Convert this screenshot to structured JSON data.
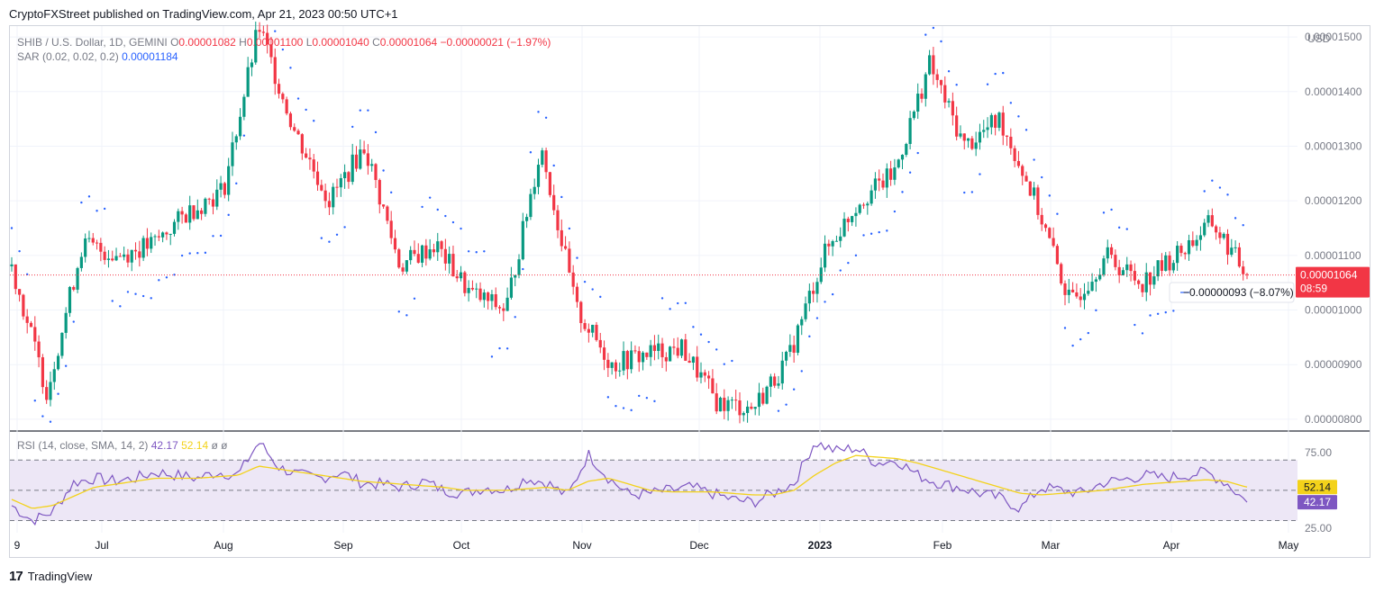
{
  "header": {
    "published": "CryptoFXStreet published on TradingView.com, Apr 21, 2023 00:50 UTC+1"
  },
  "legend_main": {
    "symbol": "SHIB / U.S. Dollar, 1D, GEMINI",
    "o_label": "O",
    "o_value": "0.00001082",
    "h_label": "H",
    "h_value": "0.00001100",
    "l_label": "L",
    "l_value": "0.00001040",
    "c_label": "C",
    "c_value": "0.00001064",
    "change": "−0.00000021 (−1.97%)"
  },
  "legend_sar": {
    "label": "SAR (0.02, 0.02, 0.2)",
    "value": "0.00001184"
  },
  "legend_rsi": {
    "label": "RSI (14, close, SMA, 14, 2)",
    "rsi_value": "42.17",
    "sma_value": "52.14",
    "extra1": "ø",
    "extra2": "ø"
  },
  "price_axis": {
    "currency": "USD",
    "last_price_label": "0.00001064",
    "countdown": "08:59",
    "measure_label": "−0.00000093 (−8.07%)"
  },
  "rsi_axis": {
    "rsi_label": "42.17",
    "sma_label": "52.14"
  },
  "footer": {
    "brand": "TradingView",
    "logo_text": "17"
  },
  "colors": {
    "up": "#089981",
    "down": "#f23645",
    "sar": "#2962ff",
    "rsi": "#7e57c2",
    "rsi_ma": "#f3d21a",
    "rsi_band": "#ede7f6",
    "grid": "#f0f3fa"
  },
  "chart_data": [
    {
      "type": "candlestick",
      "title": "SHIB / U.S. Dollar, 1D, GEMINI",
      "ylabel": "USD",
      "y_ticks": [
        "0.00000800",
        "0.00000900",
        "0.00001000",
        "0.00001100",
        "0.00001200",
        "0.00001300",
        "0.00001400",
        "0.00001500"
      ],
      "ylim": [
        7.8e-06,
        1.52e-05
      ],
      "x_ticks": [
        "9",
        "Jul",
        "Aug",
        "Sep",
        "Oct",
        "Nov",
        "Dec",
        "2023",
        "Feb",
        "Mar",
        "Apr",
        "May"
      ],
      "last_price": 1.064e-05,
      "approx_close_path": [
        {
          "date": "2023-06-09",
          "close": 1.08e-05
        },
        {
          "date": "2022-06-15",
          "close": 8.5e-06
        },
        {
          "date": "2022-06-22",
          "close": 1.12e-05
        },
        {
          "date": "2022-07-01",
          "close": 1.1e-05
        },
        {
          "date": "2022-07-12",
          "close": 1.12e-05
        },
        {
          "date": "2022-07-25",
          "close": 1.18e-05
        },
        {
          "date": "2022-08-06",
          "close": 1.22e-05
        },
        {
          "date": "2022-08-14",
          "close": 1.52e-05
        },
        {
          "date": "2022-08-20",
          "close": 1.33e-05
        },
        {
          "date": "2022-08-31",
          "close": 1.2e-05
        },
        {
          "date": "2022-09-14",
          "close": 1.3e-05
        },
        {
          "date": "2022-09-25",
          "close": 1.08e-05
        },
        {
          "date": "2022-10-05",
          "close": 1.12e-05
        },
        {
          "date": "2022-10-15",
          "close": 1.03e-05
        },
        {
          "date": "2022-10-25",
          "close": 1e-05
        },
        {
          "date": "2022-10-30",
          "close": 1.3e-05
        },
        {
          "date": "2022-11-09",
          "close": 1e-05
        },
        {
          "date": "2022-11-14",
          "close": 9e-06
        },
        {
          "date": "2022-11-24",
          "close": 9.2e-06
        },
        {
          "date": "2022-12-08",
          "close": 9.3e-06
        },
        {
          "date": "2022-12-16",
          "close": 8.3e-06
        },
        {
          "date": "2022-12-30",
          "close": 8.2e-06
        },
        {
          "date": "2023-01-08",
          "close": 9.1e-06
        },
        {
          "date": "2023-01-16",
          "close": 1.1e-05
        },
        {
          "date": "2023-01-23",
          "close": 1.2e-05
        },
        {
          "date": "2023-02-01",
          "close": 1.25e-05
        },
        {
          "date": "2023-02-05",
          "close": 1.45e-05
        },
        {
          "date": "2023-02-15",
          "close": 1.3e-05
        },
        {
          "date": "2023-02-23",
          "close": 1.35e-05
        },
        {
          "date": "2023-03-03",
          "close": 1.2e-05
        },
        {
          "date": "2023-03-10",
          "close": 1.01e-05
        },
        {
          "date": "2023-03-16",
          "close": 1.1e-05
        },
        {
          "date": "2023-03-25",
          "close": 1.05e-05
        },
        {
          "date": "2023-04-05",
          "close": 1.1e-05
        },
        {
          "date": "2023-04-17",
          "close": 1.16e-05
        },
        {
          "date": "2023-04-20",
          "close": 1.064e-05
        }
      ],
      "sar_last": 1.184e-05
    },
    {
      "type": "line",
      "title": "RSI (14, close, SMA, 14, 2)",
      "y_ticks": [
        "25.00",
        "75.00"
      ],
      "ylim": [
        22,
        88
      ],
      "bands": {
        "upper": 70,
        "middle": 50,
        "lower": 30
      },
      "series": [
        {
          "name": "RSI",
          "last": 42.17,
          "approx_path": [
            40,
            30,
            36,
            55,
            58,
            56,
            58,
            62,
            60,
            58,
            62,
            60,
            82,
            65,
            60,
            58,
            62,
            55,
            54,
            52,
            56,
            50,
            48,
            52,
            50,
            58,
            55,
            46,
            74,
            58,
            47,
            48,
            50,
            52,
            48,
            44,
            42,
            48,
            55,
            82,
            76,
            78,
            68,
            70,
            60,
            55,
            52,
            48,
            45,
            38,
            52,
            50,
            48,
            55,
            57,
            60,
            58,
            60,
            62,
            55,
            42
          ]
        },
        {
          "name": "SMA",
          "last": 52.14,
          "approx_path": [
            44,
            38,
            40,
            46,
            52,
            54,
            56,
            58,
            58,
            58,
            59,
            60,
            66,
            64,
            62,
            60,
            58,
            56,
            55,
            54,
            53,
            52,
            50,
            50,
            50,
            51,
            52,
            50,
            56,
            58,
            54,
            50,
            49,
            49,
            49,
            48,
            47,
            47,
            50,
            60,
            68,
            73,
            72,
            71,
            68,
            64,
            60,
            56,
            52,
            48,
            47,
            48,
            49,
            50,
            52,
            54,
            55,
            56,
            57,
            56,
            52
          ]
        }
      ]
    }
  ]
}
